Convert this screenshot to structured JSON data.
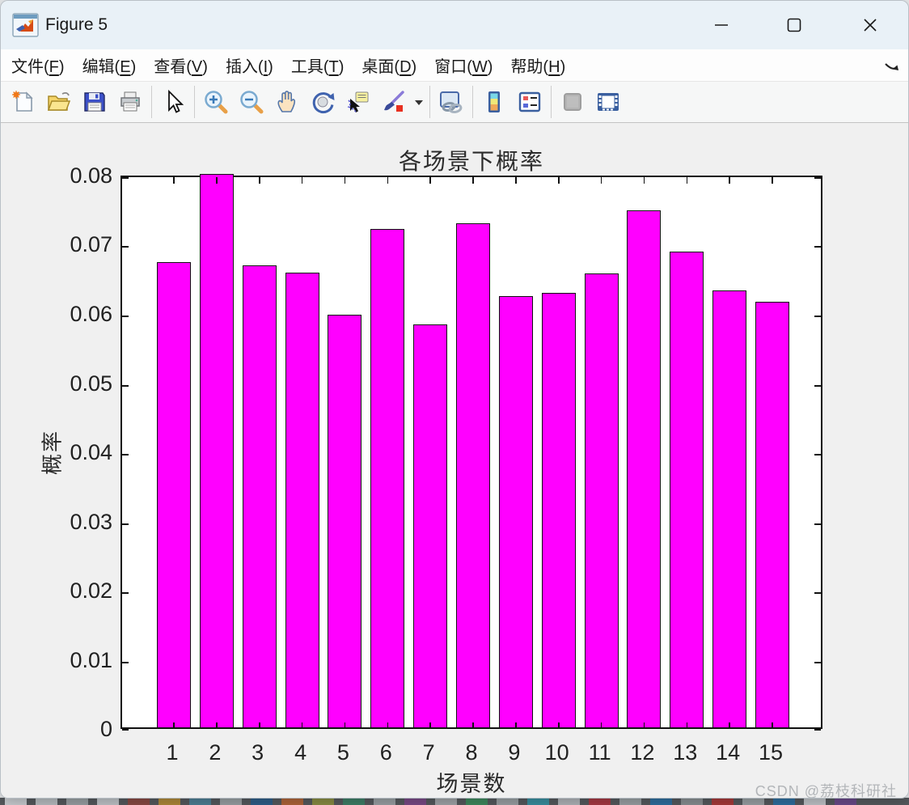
{
  "window": {
    "title": "Figure 5",
    "app_icon": "matlab-figure-icon",
    "controls": [
      {
        "name": "minimize-button",
        "icon": "minimize-icon"
      },
      {
        "name": "maximize-button",
        "icon": "maximize-icon"
      },
      {
        "name": "close-button",
        "icon": "close-icon"
      }
    ]
  },
  "menu": {
    "items": [
      {
        "label": "文件",
        "mnemonic": "F"
      },
      {
        "label": "编辑",
        "mnemonic": "E"
      },
      {
        "label": "查看",
        "mnemonic": "V"
      },
      {
        "label": "插入",
        "mnemonic": "I"
      },
      {
        "label": "工具",
        "mnemonic": "T"
      },
      {
        "label": "桌面",
        "mnemonic": "D"
      },
      {
        "label": "窗口",
        "mnemonic": "W"
      },
      {
        "label": "帮助",
        "mnemonic": "H"
      }
    ],
    "overflow_icon": "menu-overflow-arrow-icon"
  },
  "toolbar": {
    "groups": [
      [
        "new-file-icon",
        "open-file-icon",
        "save-figure-icon",
        "print-figure-icon"
      ],
      [
        "cursor-arrow-icon"
      ],
      [
        "zoom-in-icon",
        "zoom-out-icon",
        "pan-hand-icon",
        "rotate-3d-icon",
        "data-cursor-icon",
        "brush-icon",
        "brush-dropdown-icon"
      ],
      [
        "link-plot-icon"
      ],
      [
        "insert-colorbar-icon",
        "insert-legend-icon"
      ],
      [
        "hide-plot-tools-icon",
        "show-plot-tools-icon"
      ]
    ]
  },
  "chart_data": {
    "type": "bar",
    "title": "各场景下概率",
    "xlabel": "场景数",
    "ylabel": "概率",
    "categories": [
      "1",
      "2",
      "3",
      "4",
      "5",
      "6",
      "7",
      "8",
      "9",
      "10",
      "11",
      "12",
      "13",
      "14",
      "15"
    ],
    "values": [
      0.0672,
      0.08,
      0.0668,
      0.0657,
      0.0596,
      0.072,
      0.0583,
      0.0729,
      0.0623,
      0.0628,
      0.0656,
      0.0747,
      0.0688,
      0.0631,
      0.0615
    ],
    "ylim": [
      0,
      0.08
    ],
    "yticks": [
      0,
      0.01,
      0.02,
      0.03,
      0.04,
      0.05,
      0.06,
      0.07,
      0.08
    ],
    "ytick_labels": [
      "0",
      "0.01",
      "0.02",
      "0.03",
      "0.04",
      "0.05",
      "0.06",
      "0.07",
      "0.08"
    ],
    "bar_color": "#FF00FF",
    "bar_edge_color": "#111111",
    "grid": false,
    "legend_position": "none",
    "box": "on"
  },
  "watermark": {
    "text": "CSDN @荔枝科研社",
    "color": "#b3b6b9"
  },
  "desktop": {
    "edge_artifact_color": "#9b2015",
    "strip_colors": [
      "#c9cdd1",
      "#b9bec2",
      "#9aa0a4",
      "#c0c4c8",
      "#8a4a44",
      "#b08a3a",
      "#4e7f95",
      "#9aa0a4",
      "#2f5f8a",
      "#b0653a",
      "#8a8d44",
      "#3f7f68",
      "#9aa0a4",
      "#7a4a86",
      "#a0a4a8",
      "#3f8a5f",
      "#9aa0a4",
      "#3a8fa0",
      "#b0b4b8",
      "#a83a44",
      "#9aa0a4",
      "#2f6f9f",
      "#8a8f93",
      "#a83a3a",
      "#9aa0a4",
      "#2f6f9f",
      "#c0c4c8",
      "#6a4a8a"
    ]
  }
}
